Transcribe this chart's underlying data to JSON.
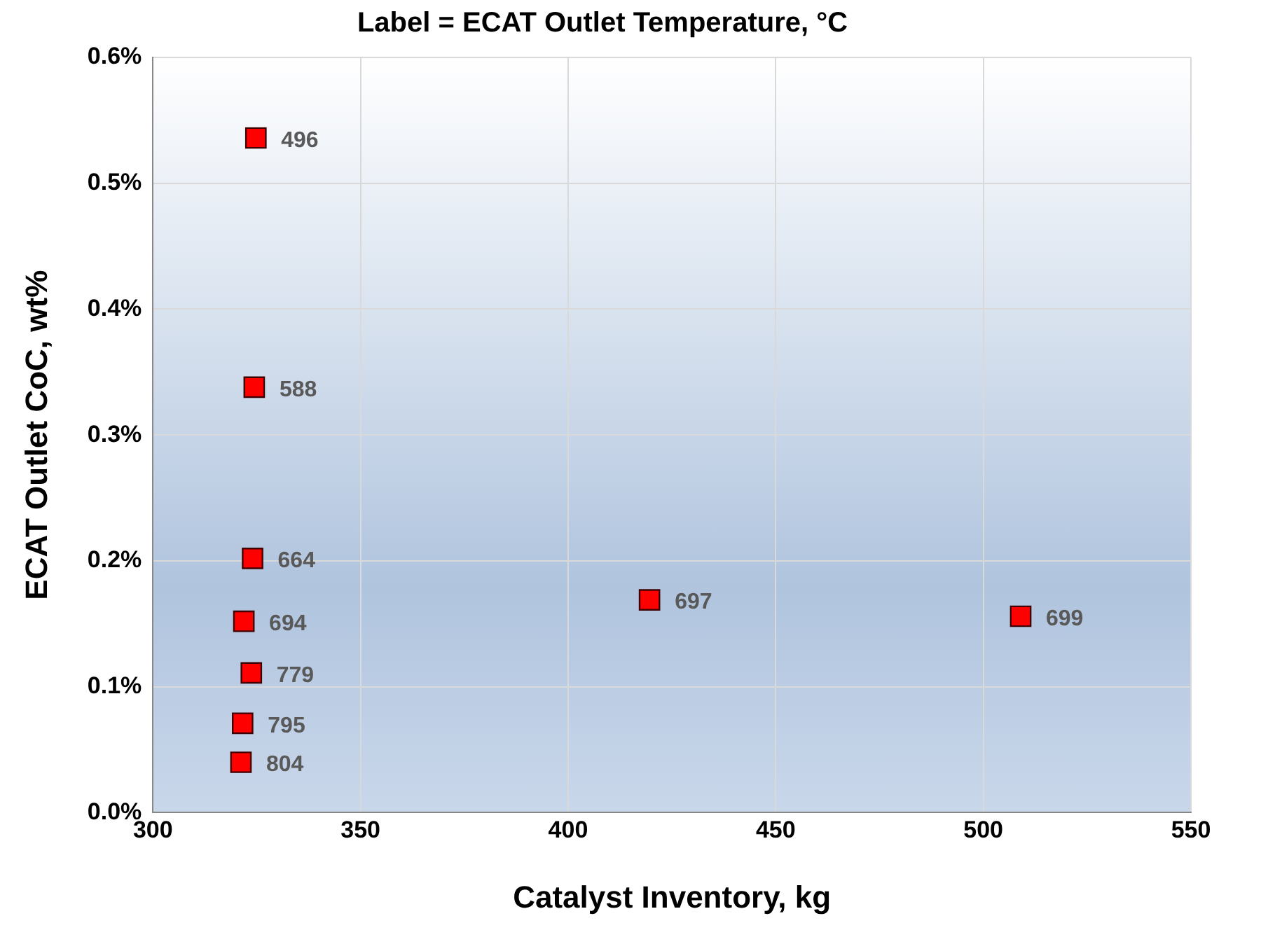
{
  "chart_data": {
    "type": "scatter",
    "title": "Label = ECAT Outlet Temperature, °C",
    "xlabel": "Catalyst Inventory, kg",
    "ylabel": "ECAT Outlet CoC, wt%",
    "x": [
      324.8,
      324.4,
      324,
      321.9,
      323.7,
      321.6,
      321.2,
      419.6,
      509
    ],
    "values": [
      0.536,
      0.338,
      0.202,
      0.152,
      0.111,
      0.071,
      0.04,
      0.169,
      0.156
    ],
    "annotations": [
      {
        "text": "496",
        "x": 324.8,
        "y": 0.536
      },
      {
        "text": "588",
        "x": 324.4,
        "y": 0.338
      },
      {
        "text": "664",
        "x": 324,
        "y": 0.202
      },
      {
        "text": "694",
        "x": 321.9,
        "y": 0.152
      },
      {
        "text": "779",
        "x": 323.7,
        "y": 0.111
      },
      {
        "text": "795",
        "x": 321.6,
        "y": 0.071
      },
      {
        "text": "804",
        "x": 321.2,
        "y": 0.04
      },
      {
        "text": "697",
        "x": 419.6,
        "y": 0.169
      },
      {
        "text": "699",
        "x": 509,
        "y": 0.156
      }
    ],
    "color": "#ff0000",
    "marker": "square",
    "grid": true,
    "xlim": [
      300,
      550
    ],
    "xticks": [
      300,
      350,
      400,
      450,
      500,
      550
    ],
    "ylim": [
      0,
      0.6
    ],
    "yticks": [
      {
        "value": 0,
        "label": "0.0%"
      },
      {
        "value": 0.1,
        "label": "0.1%"
      },
      {
        "value": 0.2,
        "label": "0.2%"
      },
      {
        "value": 0.3,
        "label": "0.3%"
      },
      {
        "value": 0.4,
        "label": "0.4%"
      },
      {
        "value": 0.5,
        "label": "0.5%"
      },
      {
        "value": 0.6,
        "label": "0.6%"
      }
    ]
  }
}
